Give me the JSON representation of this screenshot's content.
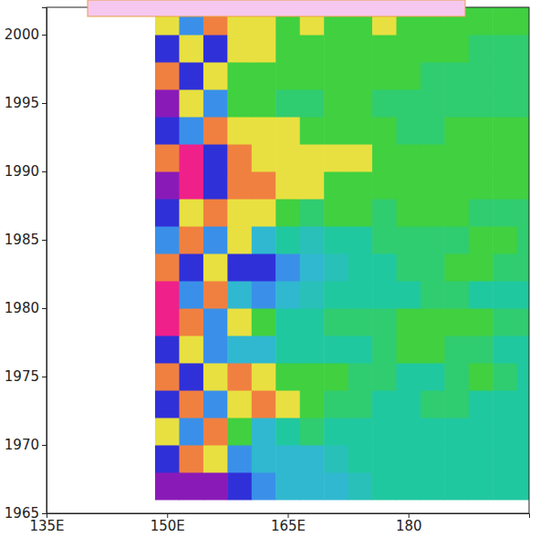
{
  "chart_data": {
    "type": "heatmap",
    "x": [
      150,
      153,
      156,
      159,
      162,
      165,
      168,
      171,
      174,
      177,
      180,
      183,
      186,
      189,
      192,
      195
    ],
    "y": [
      1967,
      1969,
      1971,
      1973,
      1975,
      1977,
      1979,
      1981,
      1983,
      1985,
      1987,
      1989,
      1991,
      1993,
      1995,
      1997,
      1999,
      2001
    ],
    "z": [
      [
        -4,
        -4,
        -4,
        -3,
        -2,
        -1,
        -1,
        -1,
        -0.5,
        0,
        0,
        0,
        0,
        0,
        0,
        0
      ],
      [
        -3,
        3,
        2,
        -2,
        -1,
        -1,
        -1,
        -0.5,
        0,
        0,
        0,
        0,
        0,
        0,
        0,
        0
      ],
      [
        2,
        -2,
        3,
        1,
        -1,
        0,
        0.5,
        0,
        0,
        0,
        0,
        0,
        0,
        0,
        0,
        0
      ],
      [
        -3,
        3,
        -2,
        2,
        3,
        2,
        1,
        0.5,
        0.5,
        0,
        0,
        0.5,
        0.5,
        0,
        0,
        0
      ],
      [
        3,
        -3,
        2,
        3,
        2,
        1,
        1,
        1,
        0.5,
        0.5,
        0,
        0,
        0.5,
        1,
        0.5,
        0
      ],
      [
        -3,
        2,
        -2,
        -1,
        -1,
        0,
        0,
        0,
        0,
        0.5,
        1,
        1,
        0.5,
        0.5,
        0,
        0
      ],
      [
        4,
        3,
        -2,
        2,
        1,
        0,
        0,
        0.5,
        0.5,
        0.5,
        1,
        1,
        1,
        1,
        0.5,
        0.5
      ],
      [
        4,
        -2,
        3,
        -1,
        -2,
        -1,
        -0.5,
        0,
        0,
        0,
        0,
        0.5,
        0.5,
        0,
        0,
        0
      ],
      [
        3,
        -3,
        2,
        -3,
        -3,
        -2,
        -1,
        -0.5,
        0,
        0,
        0.5,
        0.5,
        1,
        1,
        0.5,
        0.5
      ],
      [
        -2,
        3,
        -2,
        2,
        -1,
        0,
        -0.5,
        0,
        0,
        0.5,
        0.5,
        0.5,
        0.5,
        1,
        1,
        0.5
      ],
      [
        -3,
        2,
        3,
        2,
        2,
        1,
        0.5,
        1,
        1,
        0.5,
        1,
        1,
        1,
        0.5,
        0.5,
        0.5
      ],
      [
        -4,
        4,
        -3,
        3,
        3,
        2,
        2,
        1,
        1,
        1,
        1,
        1,
        1,
        1,
        1,
        1
      ],
      [
        3,
        4,
        -3,
        3,
        2,
        2,
        2,
        2,
        2,
        1,
        1,
        1,
        1,
        1,
        1,
        1
      ],
      [
        -3,
        -2,
        3,
        2,
        2,
        2,
        1,
        1,
        1,
        1,
        0.5,
        0.5,
        1,
        1,
        1,
        1
      ],
      [
        -4,
        2,
        -2,
        1,
        1,
        0.5,
        0.5,
        1,
        1,
        0.5,
        0.5,
        0.5,
        0.5,
        0.5,
        0.5,
        0.5
      ],
      [
        3,
        -3,
        2,
        1,
        1,
        1,
        1,
        1,
        1,
        1,
        1,
        0.5,
        0.5,
        0.5,
        0.5,
        0.5
      ],
      [
        -3,
        2,
        -3,
        2,
        2,
        1,
        1,
        1,
        1,
        1,
        1,
        1,
        1,
        0.5,
        0.5,
        0.5
      ],
      [
        2,
        -2,
        3,
        2,
        2,
        1,
        2,
        1,
        1,
        2,
        1,
        1,
        1,
        1,
        1,
        1
      ]
    ],
    "zlim": [
      -4,
      4
    ],
    "xlim": [
      135,
      195
    ],
    "ylim": [
      1965,
      2002
    ],
    "xticks": [
      {
        "value": 135,
        "label": "135E"
      },
      {
        "value": 150,
        "label": "150E"
      },
      {
        "value": 165,
        "label": "165E"
      },
      180
    ],
    "yticks": [
      1965,
      1970,
      1975,
      1980,
      1985,
      1990,
      1995,
      2000
    ],
    "grid": false
  }
}
